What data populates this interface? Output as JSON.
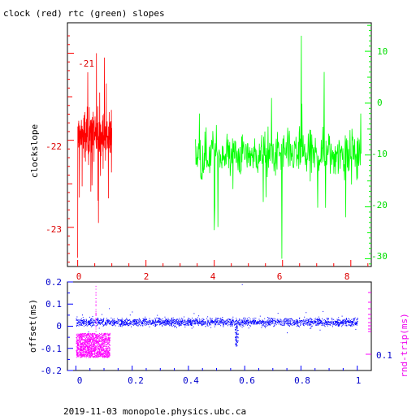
{
  "title": "clock (red) rtc (green) slopes",
  "footer": "2019-11-03  monopole.physics.ubc.ca",
  "colors": {
    "red": "#ff0000",
    "red_text": "#dd0000",
    "green": "#00ff00",
    "green_text": "#00dd00",
    "blue": "#0000ff",
    "blue_text": "#0000cc",
    "magenta": "#ff00ff",
    "magenta_text": "#ee00ee",
    "frame": "#000000"
  },
  "chart_data": [
    {
      "type": "line",
      "title": "clock (red) rtc (green) slopes",
      "ylabel": "clockslope",
      "xlim": [
        -0.3,
        8.6
      ],
      "ylim": [
        -23.45,
        -20.65
      ],
      "y2lim": [
        -31.5,
        15.5
      ],
      "x_ticks": [
        "0",
        "2",
        "4",
        "6",
        "8"
      ],
      "y_ticks": [
        "-21",
        "-22",
        "-23"
      ],
      "y2_ticks": [
        "10",
        "0",
        "-10",
        "-20",
        "-30"
      ],
      "series": [
        {
          "name": "clock",
          "axis": "left",
          "color": "#ff0000",
          "x_range": [
            0,
            1.0
          ],
          "center": -21.95,
          "typical_spread": 0.2,
          "extremes": [
            {
              "x": 0.0,
              "y": -21.3
            },
            {
              "x": 0.0,
              "y": -23.35
            },
            {
              "x": 0.61,
              "y": -20.65
            },
            {
              "x": 0.61,
              "y": -22.95
            },
            {
              "x": 0.55,
              "y": -21.0
            },
            {
              "x": 0.78,
              "y": -21.05
            }
          ]
        },
        {
          "name": "rtc",
          "axis": "right",
          "color": "#00ff00",
          "x_range": [
            3.45,
            8.3
          ],
          "center": -10,
          "typical_spread": 3,
          "extremes": [
            {
              "x": 4.0,
              "y": 0.5
            },
            {
              "x": 4.0,
              "y": -24.5
            },
            {
              "x": 5.98,
              "y": -30
            },
            {
              "x": 6.55,
              "y": 13
            },
            {
              "x": 7.22,
              "y": 6
            },
            {
              "x": 8.29,
              "y": -2
            },
            {
              "x": 7.85,
              "y": -22
            }
          ]
        }
      ]
    },
    {
      "type": "scatter",
      "ylabel": "offset(ms)",
      "y2label": "rnd-trip(ms)",
      "xlim": [
        -0.03,
        1.05
      ],
      "ylim": [
        -0.2,
        0.2
      ],
      "y2_ticks": [
        "0.1"
      ],
      "x_ticks": [
        "0",
        "0.2",
        "0.4",
        "0.6",
        "0.8",
        "1"
      ],
      "y_ticks": [
        "0.2",
        "0.1",
        "0",
        "-0.1",
        "-0.2"
      ],
      "series": [
        {
          "name": "offset",
          "color": "#0000ff",
          "x_range": [
            0,
            1.0
          ],
          "center": 0.02,
          "typical_spread": 0.02,
          "features": [
            {
              "x": 0.57,
              "y_min": -0.09,
              "y_max": 0.0
            },
            {
              "x": 0.59,
              "y": 0.19
            }
          ]
        },
        {
          "name": "rnd-trip",
          "color": "#ff00ff",
          "x_range": [
            0,
            0.12
          ],
          "y_range_offset_units": [
            -0.14,
            -0.03
          ],
          "spike": {
            "x": 0.07,
            "y_max": 0.19
          }
        }
      ]
    }
  ]
}
